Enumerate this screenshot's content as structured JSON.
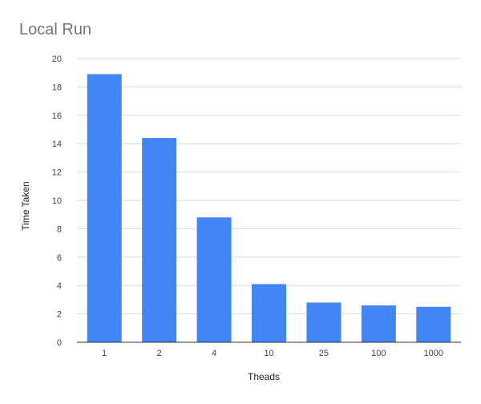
{
  "chart_data": {
    "type": "bar",
    "title": "Local Run",
    "xlabel": "Theads",
    "ylabel": "Time Taken",
    "categories": [
      "1",
      "2",
      "4",
      "10",
      "25",
      "100",
      "1000"
    ],
    "values": [
      18.9,
      14.4,
      8.8,
      4.1,
      2.8,
      2.6,
      2.5
    ],
    "ylim": [
      0,
      20
    ],
    "yticks": [
      0,
      2,
      4,
      6,
      8,
      10,
      12,
      14,
      16,
      18,
      20
    ],
    "grid": true,
    "legend": "none",
    "colors": {
      "bar": "#4285f4",
      "grid": "#d9d9d9",
      "axis": "#333333"
    }
  }
}
